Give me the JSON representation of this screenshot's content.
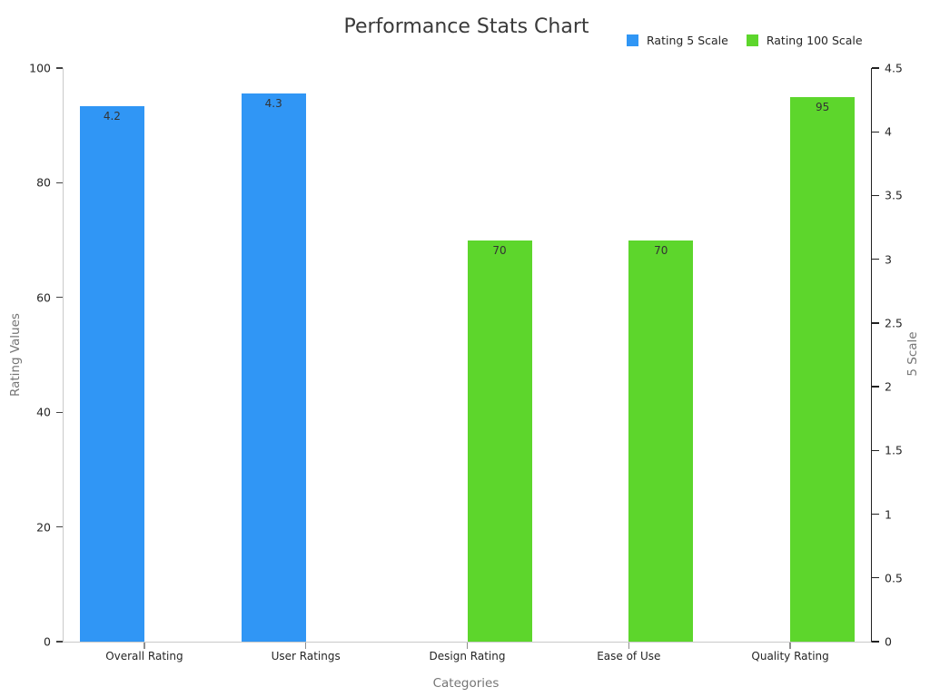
{
  "title": "Performance Stats Chart",
  "chart_data": {
    "type": "bar",
    "title": "Performance Stats Chart",
    "categories": [
      "Overall Rating",
      "User Ratings",
      "Design Rating",
      "Ease of Use",
      "Quality Rating"
    ],
    "series": [
      {
        "name": "Rating 5 Scale",
        "color": "#3096f5",
        "axis": "right",
        "values": [
          4.2,
          4.3,
          null,
          null,
          null
        ],
        "labels": [
          "4.2",
          "4.3",
          "",
          "",
          ""
        ]
      },
      {
        "name": "Rating 100 Scale",
        "color": "#5dd62c",
        "axis": "left",
        "values": [
          null,
          null,
          70,
          70,
          95
        ],
        "labels": [
          "",
          "",
          "70",
          "70",
          "95"
        ]
      }
    ],
    "xlabel": "Categories",
    "left_axis": {
      "label": "Rating Values",
      "min": 0,
      "max": 100,
      "ticks": [
        0,
        20,
        40,
        60,
        80,
        100
      ]
    },
    "right_axis": {
      "label": "5 Scale",
      "min": 0,
      "max": 4.5,
      "ticks": [
        0,
        0.5,
        1,
        1.5,
        2,
        2.5,
        3,
        3.5,
        4,
        4.5
      ]
    },
    "legend_position": "top-right",
    "grid": false,
    "background": "#ffffff"
  }
}
